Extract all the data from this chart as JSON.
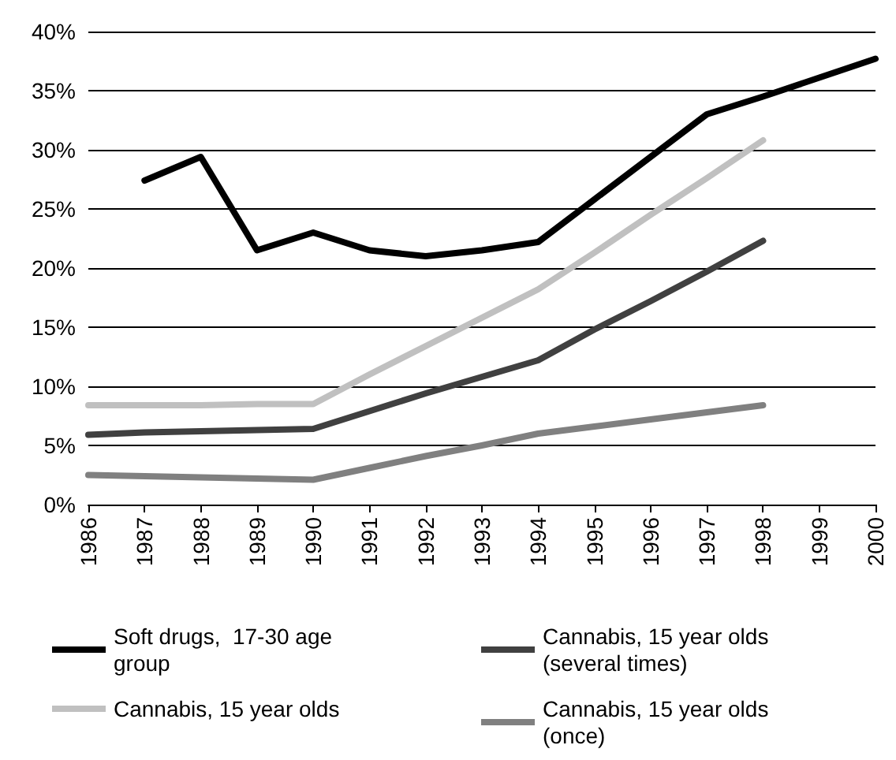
{
  "chart_data": {
    "type": "line",
    "categories": [
      "1986",
      "1987",
      "1988",
      "1989",
      "1990",
      "1991",
      "1992",
      "1993",
      "1994",
      "1995",
      "1996",
      "1997",
      "1998",
      "1999",
      "2000"
    ],
    "series": [
      {
        "name": "Soft drugs,  17-30 age group",
        "color": "#000000",
        "values": [
          null,
          27.4,
          29.4,
          21.5,
          23.0,
          21.5,
          21.0,
          21.5,
          22.2,
          25.8,
          29.4,
          33.0,
          34.5,
          36.1,
          37.7
        ]
      },
      {
        "name": "Cannabis, 15 year olds (several times)",
        "color": "#404040",
        "values": [
          5.9,
          6.1,
          6.2,
          6.3,
          6.4,
          7.9,
          9.4,
          10.8,
          12.2,
          14.8,
          17.2,
          19.7,
          22.3,
          null,
          null
        ]
      },
      {
        "name": "Cannabis, 15 year olds",
        "color": "#c0c0c0",
        "values": [
          8.4,
          8.4,
          8.4,
          8.5,
          8.5,
          11.0,
          13.4,
          15.8,
          18.2,
          21.3,
          24.5,
          27.6,
          30.8,
          null,
          null
        ]
      },
      {
        "name": "Cannabis, 15 year olds (once)",
        "color": "#808080",
        "values": [
          2.5,
          2.4,
          2.3,
          2.2,
          2.1,
          3.1,
          4.1,
          5.0,
          6.0,
          6.6,
          7.2,
          7.8,
          8.4,
          null,
          null
        ]
      }
    ],
    "ylim": [
      0,
      40
    ],
    "yticks": [
      {
        "value": 0,
        "label": "0%"
      },
      {
        "value": 5,
        "label": "5%"
      },
      {
        "value": 10,
        "label": "10%"
      },
      {
        "value": 15,
        "label": "15%"
      },
      {
        "value": 20,
        "label": "20%"
      },
      {
        "value": 25,
        "label": "25%"
      },
      {
        "value": 30,
        "label": "30%"
      },
      {
        "value": 35,
        "label": "35%"
      },
      {
        "value": 40,
        "label": "40%"
      }
    ],
    "grid": "y",
    "legend": "bottom",
    "marker": "none",
    "line_style": "solid"
  }
}
